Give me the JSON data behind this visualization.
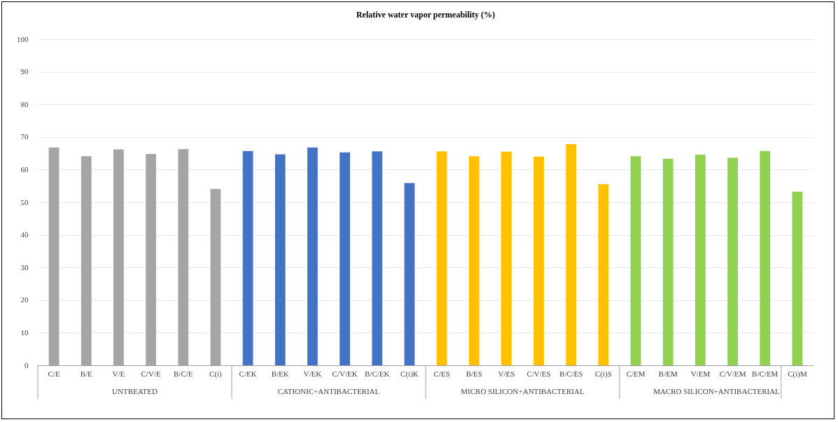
{
  "chart_data": {
    "type": "bar",
    "title": "Relative water vapor permeability (%)",
    "categories": [
      "C/E",
      "B/E",
      "V/E",
      "C/V/E",
      "B/C/E",
      "C(i)",
      "C/EK",
      "B/EK",
      "V/EK",
      "C/V/EK",
      "B/C/EK",
      "C(i)K",
      "C/ES",
      "B/ES",
      "V/ES",
      "C/V/ES",
      "B/C/ES",
      "C(i)S",
      "C/EM",
      "B/EM",
      "V/EM",
      "C/V/EM",
      "B/C/EM",
      "C(i)M"
    ],
    "series": [
      {
        "color": "#a5a5a5",
        "values": [
          66.8,
          64.1,
          66.2,
          64.8,
          66.3,
          54.1,
          null,
          null,
          null,
          null,
          null,
          null,
          null,
          null,
          null,
          null,
          null,
          null,
          null,
          null,
          null,
          null,
          null,
          null
        ]
      },
      {
        "color": "#4472c4",
        "values": [
          null,
          null,
          null,
          null,
          null,
          null,
          65.7,
          64.7,
          66.8,
          65.3,
          65.6,
          55.9,
          null,
          null,
          null,
          null,
          null,
          null,
          null,
          null,
          null,
          null,
          null,
          null
        ]
      },
      {
        "color": "#ffc000",
        "values": [
          null,
          null,
          null,
          null,
          null,
          null,
          null,
          null,
          null,
          null,
          null,
          null,
          65.6,
          64.1,
          65.5,
          64.0,
          67.8,
          55.5,
          null,
          null,
          null,
          null,
          null,
          null
        ]
      },
      {
        "color": "#92d050",
        "values": [
          null,
          null,
          null,
          null,
          null,
          null,
          null,
          null,
          null,
          null,
          null,
          null,
          null,
          null,
          null,
          null,
          null,
          null,
          64.1,
          63.3,
          64.6,
          63.6,
          65.7,
          53.2
        ]
      }
    ],
    "annotations": [
      "UNTREATED",
      "CATIONIC+ANTIBACTERIAL",
      "MICRO SILICON+ANTIBACTERIAL",
      "MACRO SILICON+ANTIBACTERIAL"
    ],
    "ylim": [
      0,
      100
    ],
    "yticks": [
      0,
      10,
      20,
      30,
      40,
      50,
      60,
      70,
      80,
      90,
      100
    ],
    "grid": "y",
    "legend": false
  }
}
